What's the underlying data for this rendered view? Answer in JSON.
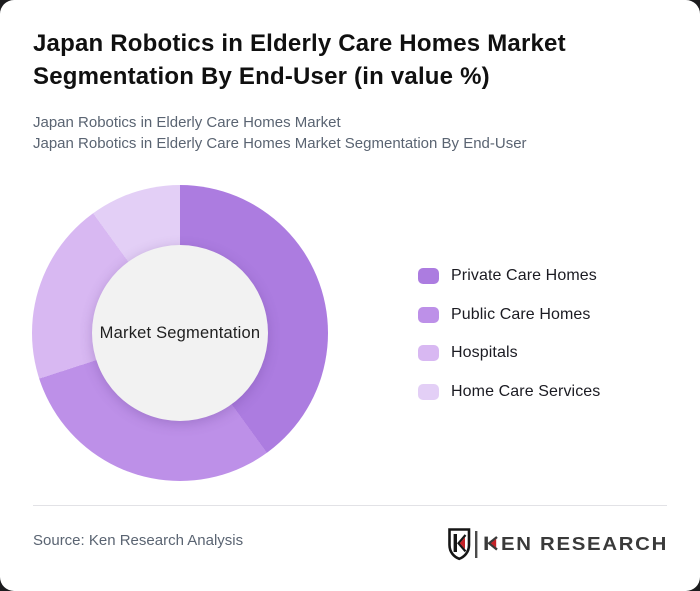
{
  "page": {
    "background": "#1c1c1e",
    "card_background": "#ffffff"
  },
  "header": {
    "title": "Japan Robotics in Elderly Care Homes Market Segmentation By End-User (in value %)",
    "subtitle_line1": "Japan Robotics in Elderly Care Homes Market",
    "subtitle_line2": "Japan Robotics in Elderly Care Homes Market Segmentation By End-User"
  },
  "chart_data": {
    "type": "pie",
    "donut": true,
    "title": "Japan Robotics in Elderly Care Homes Market Segmentation By End-User (in value %)",
    "center_label": "Market Segmentation",
    "categories": [
      "Private Care Homes",
      "Public Care Homes",
      "Hospitals",
      "Home Care Services"
    ],
    "values": [
      40,
      30,
      20,
      10
    ],
    "unit": "%",
    "colors": [
      "#ac7ce0",
      "#bd90e8",
      "#d8b8f2",
      "#e3cff6"
    ],
    "start_angle_deg": 0,
    "direction": "clockwise",
    "legend_position": "right",
    "hole_color": "#f2f2f2"
  },
  "footer": {
    "source": "Source: Ken Research Analysis",
    "logo": {
      "brand": "KEN RESEARCH",
      "text_after_k": "EN RESEARCH",
      "red": "#c42127",
      "dark": "#3a3a3a"
    }
  }
}
